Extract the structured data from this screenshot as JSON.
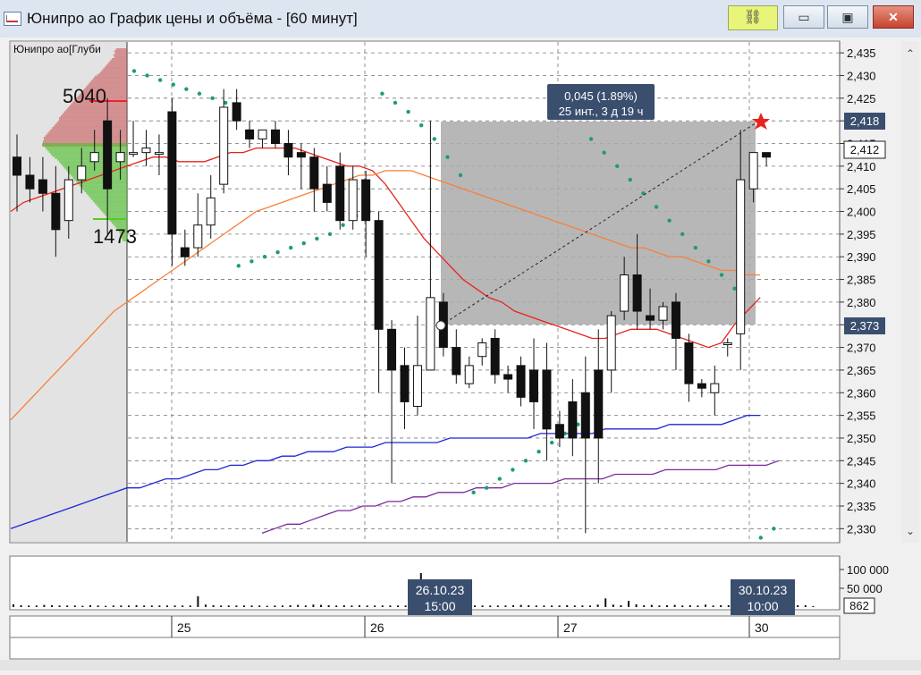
{
  "window": {
    "title": "Юнипро ао График цены и объёма - [60 минут]",
    "minimize_glyph": "▭",
    "maximize_glyph": "▣",
    "close_glyph": "✕",
    "link_icon": "link-icon"
  },
  "depth_panel": {
    "title": "Юнипро ао[Глуби",
    "top_volume": "5040",
    "bottom_volume": "1473"
  },
  "measurement": {
    "line1": "0,045 (1.89%)",
    "line2": "25 инт., 3 д 19 ч"
  },
  "price_axis": {
    "ticks": [
      "2,435",
      "2,430",
      "2,425",
      "2,420",
      "2,415",
      "2,410",
      "2,405",
      "2,400",
      "2,395",
      "2,390",
      "2,385",
      "2,380",
      "2,375",
      "2,370",
      "2,365",
      "2,360",
      "2,355",
      "2,350",
      "2,345",
      "2,340",
      "2,335",
      "2,330"
    ],
    "marker_top": "2,418",
    "marker_current": "2,412",
    "marker_bottom": "2,373"
  },
  "volume_axis": {
    "tick_high": "100 000",
    "tick_mid": "50 000",
    "current": "862"
  },
  "time_axis": {
    "labels": [
      "25",
      "26",
      "27",
      "30"
    ]
  },
  "cursor_labels": [
    {
      "date": "26.10.23",
      "time": "15:00"
    },
    {
      "date": "30.10.23",
      "time": "10:00"
    }
  ],
  "chart_data": {
    "type": "candlestick",
    "price_range": [
      2.3275,
      2.437
    ],
    "candles": [
      [
        2.412,
        2.408,
        2.417,
        2.4
      ],
      [
        2.408,
        2.405,
        2.412,
        2.402
      ],
      [
        2.407,
        2.404,
        2.412,
        2.4
      ],
      [
        2.404,
        2.396,
        2.41,
        2.39
      ],
      [
        2.398,
        2.407,
        2.41,
        2.394
      ],
      [
        2.407,
        2.41,
        2.414,
        2.404
      ],
      [
        2.411,
        2.413,
        2.418,
        2.409
      ],
      [
        2.42,
        2.405,
        2.425,
        2.395
      ],
      [
        2.411,
        2.413,
        2.418,
        2.407
      ],
      [
        2.413,
        2.413,
        2.42,
        2.412
      ],
      [
        2.413,
        2.414,
        2.418,
        2.41
      ],
      [
        2.413,
        2.413,
        2.417,
        2.408
      ],
      [
        2.422,
        2.395,
        2.425,
        2.388
      ],
      [
        2.392,
        2.39,
        2.396,
        2.388
      ],
      [
        2.392,
        2.397,
        2.404,
        2.39
      ],
      [
        2.397,
        2.403,
        2.408,
        2.394
      ],
      [
        2.406,
        2.423,
        2.427,
        2.404
      ],
      [
        2.424,
        2.42,
        2.427,
        2.418
      ],
      [
        2.418,
        2.416,
        2.42,
        2.414
      ],
      [
        2.416,
        2.418,
        2.418,
        2.414
      ],
      [
        2.418,
        2.415,
        2.42,
        2.414
      ],
      [
        2.415,
        2.412,
        2.418,
        2.408
      ],
      [
        2.413,
        2.412,
        2.415,
        2.405
      ],
      [
        2.412,
        2.405,
        2.414,
        2.4
      ],
      [
        2.406,
        2.402,
        2.41,
        2.4
      ],
      [
        2.41,
        2.398,
        2.413,
        2.396
      ],
      [
        2.398,
        2.407,
        2.41,
        2.396
      ],
      [
        2.407,
        2.398,
        2.409,
        2.39
      ],
      [
        2.398,
        2.374,
        2.4,
        2.36
      ],
      [
        2.374,
        2.365,
        2.376,
        2.34
      ],
      [
        2.366,
        2.358,
        2.37,
        2.352
      ],
      [
        2.357,
        2.366,
        2.377,
        2.355
      ],
      [
        2.365,
        2.381,
        2.42,
        2.365
      ],
      [
        2.38,
        2.37,
        2.382,
        2.368
      ],
      [
        2.37,
        2.364,
        2.374,
        2.362
      ],
      [
        2.362,
        2.366,
        2.368,
        2.361
      ],
      [
        2.368,
        2.371,
        2.372,
        2.366
      ],
      [
        2.372,
        2.364,
        2.374,
        2.362
      ],
      [
        2.364,
        2.363,
        2.366,
        2.36
      ],
      [
        2.366,
        2.359,
        2.368,
        2.357
      ],
      [
        2.365,
        2.358,
        2.372,
        2.352
      ],
      [
        2.365,
        2.352,
        2.371,
        2.345
      ],
      [
        2.353,
        2.35,
        2.356,
        2.348
      ],
      [
        2.358,
        2.35,
        2.363,
        2.346
      ],
      [
        2.36,
        2.35,
        2.368,
        2.329
      ],
      [
        2.365,
        2.35,
        2.374,
        2.34
      ],
      [
        2.365,
        2.377,
        2.378,
        2.36
      ],
      [
        2.378,
        2.386,
        2.39,
        2.376
      ],
      [
        2.386,
        2.378,
        2.395,
        2.374
      ],
      [
        2.377,
        2.376,
        2.383,
        2.374
      ],
      [
        2.376,
        2.379,
        2.38,
        2.374
      ],
      [
        2.38,
        2.372,
        2.382,
        2.365
      ],
      [
        2.371,
        2.362,
        2.373,
        2.358
      ],
      [
        2.362,
        2.361,
        2.363,
        2.359
      ],
      [
        2.36,
        2.362,
        2.366,
        2.355
      ],
      [
        2.371,
        2.371,
        2.372,
        2.368
      ],
      [
        2.373,
        2.407,
        2.418,
        2.365
      ],
      [
        2.405,
        2.413,
        2.413,
        2.402
      ],
      [
        2.413,
        2.412,
        2.413,
        2.41
      ]
    ],
    "ma_fast": [
      2.4,
      2.402,
      2.403,
      2.404,
      2.405,
      2.406,
      2.407,
      2.408,
      2.409,
      2.41,
      2.411,
      2.412,
      2.412,
      2.411,
      2.411,
      2.411,
      2.412,
      2.413,
      2.413,
      2.414,
      2.414,
      2.414,
      2.414,
      2.413,
      2.412,
      2.411,
      2.41,
      2.41,
      2.409,
      2.406,
      2.402,
      2.398,
      2.394,
      2.391,
      2.388,
      2.385,
      2.383,
      2.381,
      2.38,
      2.378,
      2.377,
      2.376,
      2.375,
      2.374,
      2.373,
      2.372,
      2.372,
      2.373,
      2.374,
      2.374,
      2.374,
      2.373,
      2.372,
      2.371,
      2.37,
      2.371,
      2.375,
      2.378,
      2.381
    ],
    "ma_mid": [
      2.354,
      2.357,
      2.36,
      2.363,
      2.366,
      2.369,
      2.372,
      2.375,
      2.378,
      2.38,
      2.382,
      2.384,
      2.386,
      2.388,
      2.39,
      2.392,
      2.394,
      2.396,
      2.398,
      2.4,
      2.401,
      2.402,
      2.403,
      2.404,
      2.405,
      2.406,
      2.407,
      2.408,
      2.408,
      2.409,
      2.409,
      2.409,
      2.408,
      2.407,
      2.406,
      2.405,
      2.404,
      2.403,
      2.402,
      2.401,
      2.4,
      2.399,
      2.398,
      2.397,
      2.396,
      2.395,
      2.394,
      2.393,
      2.392,
      2.392,
      2.391,
      2.39,
      2.39,
      2.389,
      2.388,
      2.387,
      2.387,
      2.386,
      2.386
    ],
    "ma_slow": [
      2.33,
      2.331,
      2.332,
      2.333,
      2.334,
      2.335,
      2.336,
      2.337,
      2.338,
      2.339,
      2.339,
      2.34,
      2.341,
      2.341,
      2.342,
      2.343,
      2.343,
      2.344,
      2.344,
      2.345,
      2.345,
      2.346,
      2.346,
      2.347,
      2.347,
      2.347,
      2.348,
      2.348,
      2.348,
      2.349,
      2.349,
      2.349,
      2.349,
      2.349,
      2.35,
      2.35,
      2.35,
      2.35,
      2.35,
      2.35,
      2.35,
      2.351,
      2.351,
      2.351,
      2.351,
      2.351,
      2.352,
      2.352,
      2.352,
      2.352,
      2.352,
      2.353,
      2.353,
      2.353,
      2.353,
      2.353,
      2.354,
      2.355,
      2.355
    ],
    "ma_long": [
      2.329,
      2.33,
      2.331,
      2.331,
      2.332,
      2.333,
      2.334,
      2.334,
      2.335,
      2.335,
      2.336,
      2.336,
      2.337,
      2.337,
      2.338,
      2.338,
      2.338,
      2.339,
      2.339,
      2.339,
      2.34,
      2.34,
      2.34,
      2.34,
      2.341,
      2.341,
      2.341,
      2.341,
      2.342,
      2.342,
      2.342,
      2.342,
      2.343,
      2.343,
      2.343,
      2.343,
      2.343,
      2.344,
      2.344,
      2.344,
      2.344,
      2.345
    ],
    "sar": [
      2.431,
      2.43,
      2.429,
      2.428,
      2.427,
      2.426,
      2.425,
      2.424,
      2.388,
      2.389,
      2.39,
      2.391,
      2.392,
      2.393,
      2.394,
      2.395,
      2.397,
      2.399,
      2.4,
      2.426,
      2.424,
      2.422,
      2.419,
      2.416,
      2.412,
      2.408,
      2.338,
      2.339,
      2.341,
      2.343,
      2.345,
      2.347,
      2.349,
      2.351,
      2.353,
      2.416,
      2.413,
      2.41,
      2.407,
      2.404,
      2.401,
      2.398,
      2.395,
      2.392,
      2.389,
      2.386,
      2.383,
      2.327,
      2.328,
      2.33
    ],
    "volumes": [
      9000,
      6000,
      5000,
      5000,
      7000,
      6000,
      5000,
      5000,
      5000,
      4000,
      6000,
      5000,
      4000,
      5000,
      5000,
      5000,
      6000,
      5000,
      5000,
      5000,
      5000,
      5000,
      5000,
      5000,
      35000,
      8000,
      6000,
      5000,
      5000,
      5000,
      5000,
      5000,
      5000,
      4000,
      5000,
      5000,
      6000,
      7000,
      5000,
      8000,
      7000,
      6000,
      5000,
      6000,
      5000,
      6000,
      5000,
      5000,
      5000,
      5000,
      5000,
      5000,
      5000,
      110000,
      6000,
      5000,
      5000,
      5000,
      5000,
      5000,
      5000,
      5000,
      5000,
      5000,
      5000,
      6000,
      7000,
      6000,
      5000,
      5000,
      5000,
      5000,
      6000,
      5000,
      5000,
      5000,
      8000,
      28000,
      8000,
      6000,
      20000,
      9000,
      6000,
      7000,
      5000,
      6000,
      7000,
      5000,
      6000,
      5000,
      8000,
      5000,
      6000,
      6000,
      5000,
      5000,
      5000,
      5000,
      5000,
      5000,
      5000,
      5000,
      6000,
      6000,
      862
    ],
    "depth_asks": [
      13,
      15,
      14,
      16,
      15,
      18,
      20,
      22,
      24,
      26,
      28,
      30,
      32,
      35,
      38,
      40,
      42,
      44,
      46,
      48,
      50,
      52,
      54,
      56,
      58,
      60,
      62,
      64,
      66,
      68,
      70,
      72,
      74,
      76,
      78,
      80,
      80,
      82,
      84,
      86,
      88,
      90,
      92,
      94,
      96,
      98,
      98,
      99,
      99,
      100
    ],
    "depth_bids": [
      100,
      98,
      96,
      94,
      92,
      90,
      88,
      85,
      82,
      80,
      78,
      76,
      74,
      72,
      70,
      68,
      66,
      64,
      62,
      60,
      58,
      56,
      54,
      52,
      50,
      48,
      46,
      44,
      42,
      40,
      38,
      36,
      34,
      32,
      30,
      28,
      26,
      24,
      22,
      20,
      18,
      16,
      14,
      12,
      10,
      9,
      8,
      7,
      6,
      5
    ]
  },
  "colors": {
    "ma_fast": "#e8231c",
    "ma_mid": "#f7813a",
    "ma_slow": "#1f27d6",
    "ma_long": "#7b2a9e",
    "sar": "#1f9a7c",
    "selection": "#aaaaaa",
    "ask": "#c74a4a",
    "bid": "#4fbf2d"
  }
}
